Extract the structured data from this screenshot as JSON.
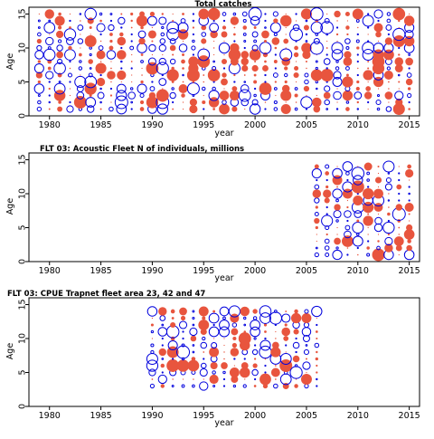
{
  "colors": {
    "residual_positive": "#e8553e",
    "residual_negative": "#0000dd",
    "frame": "#000000",
    "background": "#ffffff"
  },
  "chart_data": [
    {
      "type": "scatter",
      "title": "Total catches",
      "xlabel": "year",
      "ylabel": "Age",
      "xlim": [
        1978,
        2016
      ],
      "ylim": [
        0,
        16
      ],
      "xticks": [
        1980,
        1985,
        1990,
        1995,
        2000,
        2005,
        2010,
        2015
      ],
      "yticks": [
        0,
        5,
        10,
        15
      ],
      "years": [
        1979,
        2015
      ],
      "ages": [
        1,
        15
      ],
      "seed": 11,
      "grid": false
    },
    {
      "type": "scatter",
      "title": "FLT 03: Acoustic Fleet   N of individuals, millions",
      "xlabel": "year",
      "ylabel": "Age",
      "xlim": [
        1978,
        2016
      ],
      "ylim": [
        0,
        16
      ],
      "xticks": [
        1980,
        1985,
        1990,
        1995,
        2000,
        2005,
        2010,
        2015
      ],
      "yticks": [
        0,
        5,
        10,
        15
      ],
      "years": [
        2006,
        2015
      ],
      "ages": [
        1,
        14
      ],
      "seed": 23,
      "grid": false
    },
    {
      "type": "scatter",
      "title": "FLT 03: CPUE Trapnet fleet area 23, 42 and 47",
      "xlabel": "year",
      "ylabel": "Age",
      "xlim": [
        1978,
        2016
      ],
      "ylim": [
        0,
        16
      ],
      "xticks": [
        1980,
        1985,
        1990,
        1995,
        2000,
        2005,
        2010,
        2015
      ],
      "yticks": [
        0,
        5,
        10,
        15
      ],
      "years": [
        1990,
        2006
      ],
      "ages": [
        3,
        14
      ],
      "seed": 37,
      "grid": false
    }
  ]
}
